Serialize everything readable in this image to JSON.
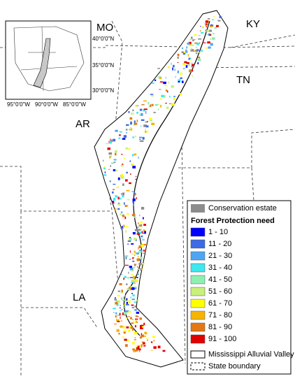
{
  "states": {
    "mo": "MO",
    "ky": "KY",
    "tn": "TN",
    "ar": "AR",
    "la": "LA"
  },
  "inset": {
    "lat_labels": [
      "40°0'0\"N",
      "35°0'0\"N",
      "30°0'0\"N"
    ],
    "lon_labels": [
      "95°0'0\"W",
      "90°0'0\"W",
      "85°0'0\"W"
    ]
  },
  "legend": {
    "conservation": {
      "label": "Conservation estate",
      "color": "#8c8c8c"
    },
    "title": "Forest Protection need",
    "classes": [
      {
        "label": "1 - 10",
        "color": "#0000ff"
      },
      {
        "label": "11 - 20",
        "color": "#3d6be6"
      },
      {
        "label": "21 - 30",
        "color": "#4ea6f2"
      },
      {
        "label": "31 - 40",
        "color": "#3ee8ee"
      },
      {
        "label": "41 - 50",
        "color": "#8ef0b0"
      },
      {
        "label": "51 - 60",
        "color": "#c8f07a"
      },
      {
        "label": "61 - 70",
        "color": "#ffff00"
      },
      {
        "label": "71 - 80",
        "color": "#f5b400"
      },
      {
        "label": "81 - 90",
        "color": "#e47814"
      },
      {
        "label": "91 - 100",
        "color": "#e00000"
      }
    ],
    "valley": {
      "label": "Mississippi Alluvial Valley"
    },
    "boundary": {
      "label": "State boundary"
    }
  }
}
